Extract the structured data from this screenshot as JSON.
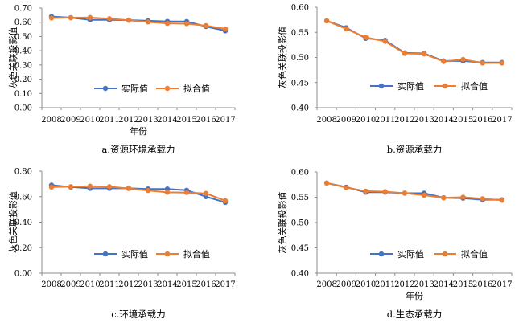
{
  "legend": {
    "actual": "实际值",
    "fitted": "拟合值"
  },
  "colors": {
    "actual": "#4472C4",
    "fitted": "#ED7D31",
    "axis": "#8c8c8c"
  },
  "chart_data": [
    {
      "type": "line",
      "caption": "a.资源环境承载力",
      "xlabel": "年份",
      "ylabel": "灰色关联投影值",
      "categories": [
        "2008",
        "2009",
        "2010",
        "2011",
        "2012",
        "2013",
        "2014",
        "2015",
        "2016",
        "2017"
      ],
      "ylim": [
        0.0,
        0.7
      ],
      "yticks": [
        "0.00",
        "0.10",
        "0.20",
        "0.30",
        "0.40",
        "0.50",
        "0.60",
        "0.70"
      ],
      "series": [
        {
          "name": "实际值",
          "values": [
            0.64,
            0.632,
            0.617,
            0.617,
            0.615,
            0.61,
            0.606,
            0.605,
            0.57,
            0.54
          ]
        },
        {
          "name": "拟合值",
          "values": [
            0.63,
            0.632,
            0.633,
            0.625,
            0.614,
            0.602,
            0.592,
            0.59,
            0.576,
            0.553
          ]
        }
      ]
    },
    {
      "type": "line",
      "caption": "b.资源承载力",
      "xlabel": "",
      "ylabel": "灰色关联投影值",
      "categories": [
        "2008",
        "2009",
        "2010",
        "2011",
        "2012",
        "2013",
        "2014",
        "2015",
        "2016",
        "2017"
      ],
      "ylim": [
        0.4,
        0.6
      ],
      "yticks": [
        "0.40",
        "0.45",
        "0.50",
        "0.55",
        "0.60"
      ],
      "series": [
        {
          "name": "实际值",
          "values": [
            0.573,
            0.559,
            0.538,
            0.534,
            0.509,
            0.508,
            0.493,
            0.493,
            0.49,
            0.49
          ]
        },
        {
          "name": "拟合值",
          "values": [
            0.573,
            0.557,
            0.54,
            0.532,
            0.508,
            0.507,
            0.492,
            0.496,
            0.489,
            0.489
          ]
        }
      ]
    },
    {
      "type": "line",
      "caption": "c.环境承载力",
      "xlabel": "",
      "ylabel": "灰色关联投影值",
      "categories": [
        "2008",
        "2009",
        "2010",
        "2011",
        "2012",
        "2013",
        "2014",
        "2015",
        "2016",
        "2017"
      ],
      "ylim": [
        0.0,
        0.8
      ],
      "yticks": [
        "0.00",
        "0.20",
        "0.40",
        "0.60",
        "0.80"
      ],
      "series": [
        {
          "name": "实际值",
          "values": [
            0.69,
            0.675,
            0.665,
            0.665,
            0.665,
            0.66,
            0.66,
            0.65,
            0.6,
            0.555
          ]
        },
        {
          "name": "拟合值",
          "values": [
            0.675,
            0.678,
            0.682,
            0.678,
            0.664,
            0.648,
            0.634,
            0.632,
            0.625,
            0.568
          ]
        }
      ]
    },
    {
      "type": "line",
      "caption": "d.生态承载力",
      "xlabel": "年份",
      "ylabel": "灰色关联投影值",
      "categories": [
        "2008",
        "2009",
        "2010",
        "2011",
        "2012",
        "2013",
        "2014",
        "2015",
        "2016",
        "2017"
      ],
      "ylim": [
        0.4,
        0.6
      ],
      "yticks": [
        "0.40",
        "0.45",
        "0.50",
        "0.55",
        "0.60"
      ],
      "series": [
        {
          "name": "实际值",
          "values": [
            0.578,
            0.57,
            0.56,
            0.56,
            0.558,
            0.558,
            0.549,
            0.548,
            0.545,
            0.545
          ]
        },
        {
          "name": "拟合值",
          "values": [
            0.578,
            0.569,
            0.562,
            0.561,
            0.558,
            0.554,
            0.549,
            0.55,
            0.547,
            0.544
          ]
        }
      ]
    }
  ]
}
